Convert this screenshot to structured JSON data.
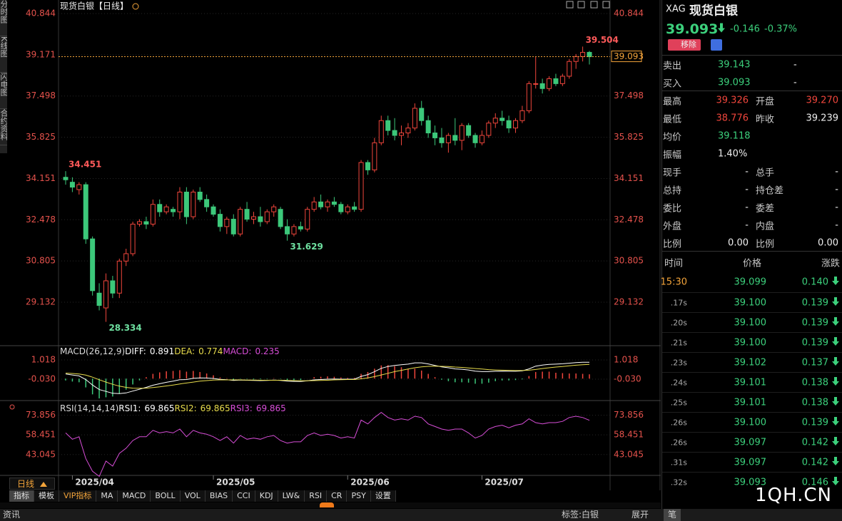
{
  "side_tabs": [
    "分时图",
    "K线图",
    "闪电图",
    "合约资料"
  ],
  "chart_data": [
    {
      "type": "candlestick",
      "title": "现货白银【日线】",
      "up_color": "#f0463c",
      "down_color": "#3cc87a",
      "grid": true,
      "ylim": [
        27.368,
        41.249
      ],
      "yticks": [
        40.844,
        39.171,
        37.498,
        35.825,
        34.151,
        32.478,
        30.805,
        29.132
      ],
      "categories": [
        null,
        "2025/04",
        null,
        null,
        null,
        null,
        null,
        null,
        null,
        null,
        null,
        null,
        null,
        null,
        null,
        null,
        null,
        null,
        null,
        null,
        null,
        null,
        "2025/05",
        null,
        null,
        null,
        null,
        null,
        null,
        null,
        null,
        null,
        null,
        null,
        null,
        null,
        null,
        null,
        null,
        null,
        null,
        null,
        "2025/06",
        null,
        null,
        null,
        null,
        null,
        null,
        null,
        null,
        null,
        null,
        null,
        null,
        null,
        null,
        null,
        null,
        null,
        null,
        null,
        "2025/07",
        null,
        null,
        null,
        null,
        null,
        null,
        null,
        null,
        null,
        null,
        null,
        null,
        null,
        null,
        null
      ],
      "candles": [
        [
          34.2,
          34.451,
          33.9,
          34.1
        ],
        [
          34.0,
          34.2,
          33.6,
          33.8
        ],
        [
          33.7,
          34.0,
          33.5,
          33.9
        ],
        [
          33.9,
          34.0,
          31.5,
          31.7
        ],
        [
          31.7,
          31.8,
          29.4,
          29.6
        ],
        [
          29.5,
          29.9,
          28.8,
          29.0
        ],
        [
          28.9,
          30.3,
          28.334,
          30.0
        ],
        [
          30.0,
          30.2,
          29.3,
          29.5
        ],
        [
          29.5,
          30.9,
          29.3,
          30.8
        ],
        [
          30.8,
          31.3,
          30.6,
          31.1
        ],
        [
          31.1,
          32.4,
          31.0,
          32.3
        ],
        [
          32.3,
          32.5,
          32.2,
          32.4
        ],
        [
          32.4,
          32.6,
          32.1,
          32.3
        ],
        [
          32.3,
          33.3,
          32.2,
          33.1
        ],
        [
          33.1,
          33.3,
          32.6,
          32.8
        ],
        [
          32.8,
          33.1,
          32.7,
          33.0
        ],
        [
          32.9,
          33.0,
          32.6,
          32.8
        ],
        [
          32.8,
          33.8,
          32.5,
          33.6
        ],
        [
          33.6,
          33.8,
          32.3,
          32.6
        ],
        [
          32.6,
          33.7,
          32.5,
          33.6
        ],
        [
          33.6,
          33.8,
          33.2,
          33.3
        ],
        [
          33.3,
          33.5,
          32.8,
          33.0
        ],
        [
          33.0,
          33.1,
          32.6,
          32.7
        ],
        [
          32.7,
          32.9,
          32.0,
          32.2
        ],
        [
          32.2,
          32.6,
          31.9,
          32.5
        ],
        [
          32.5,
          32.7,
          31.8,
          31.9
        ],
        [
          31.9,
          33.0,
          31.8,
          32.9
        ],
        [
          32.9,
          33.2,
          32.4,
          32.5
        ],
        [
          32.5,
          32.8,
          32.3,
          32.6
        ],
        [
          32.6,
          33.0,
          32.2,
          32.4
        ],
        [
          32.4,
          32.9,
          32.3,
          32.8
        ],
        [
          32.8,
          33.1,
          32.6,
          33.0
        ],
        [
          32.9,
          33.0,
          32.1,
          32.2
        ],
        [
          32.2,
          32.5,
          31.629,
          31.9
        ],
        [
          31.9,
          32.3,
          31.8,
          32.2
        ],
        [
          32.2,
          32.4,
          32.0,
          32.1
        ],
        [
          32.1,
          33.0,
          32.0,
          32.9
        ],
        [
          32.9,
          33.4,
          32.8,
          33.2
        ],
        [
          33.2,
          33.5,
          32.9,
          33.0
        ],
        [
          33.0,
          33.3,
          32.8,
          33.2
        ],
        [
          33.2,
          33.4,
          33.0,
          33.1
        ],
        [
          33.1,
          33.2,
          32.7,
          32.8
        ],
        [
          32.8,
          33.1,
          32.7,
          33.0
        ],
        [
          33.0,
          33.2,
          32.8,
          32.9
        ],
        [
          32.9,
          34.9,
          32.8,
          34.8
        ],
        [
          34.8,
          34.9,
          34.3,
          34.5
        ],
        [
          34.5,
          35.8,
          34.4,
          35.6
        ],
        [
          35.6,
          36.7,
          35.5,
          36.5
        ],
        [
          36.5,
          36.7,
          35.9,
          36.1
        ],
        [
          36.1,
          36.6,
          35.7,
          35.9
        ],
        [
          35.9,
          36.3,
          35.5,
          36.0
        ],
        [
          36.0,
          36.4,
          35.8,
          36.2
        ],
        [
          36.2,
          37.2,
          36.1,
          37.0
        ],
        [
          37.0,
          37.3,
          36.3,
          36.5
        ],
        [
          36.5,
          36.7,
          35.8,
          36.0
        ],
        [
          36.0,
          36.3,
          35.5,
          35.8
        ],
        [
          35.8,
          36.2,
          35.4,
          35.6
        ],
        [
          35.6,
          36.0,
          35.2,
          35.9
        ],
        [
          35.9,
          36.6,
          35.5,
          35.7
        ],
        [
          35.7,
          36.4,
          35.3,
          36.3
        ],
        [
          36.3,
          36.4,
          35.8,
          35.9
        ],
        [
          35.9,
          36.0,
          35.4,
          35.6
        ],
        [
          35.6,
          36.1,
          35.5,
          35.9
        ],
        [
          35.9,
          36.5,
          35.8,
          36.4
        ],
        [
          36.4,
          36.8,
          36.2,
          36.6
        ],
        [
          36.6,
          36.9,
          36.3,
          36.5
        ],
        [
          36.5,
          36.7,
          36.0,
          36.2
        ],
        [
          36.2,
          36.6,
          36.0,
          36.5
        ],
        [
          36.5,
          37.1,
          36.4,
          36.9
        ],
        [
          36.9,
          38.1,
          36.8,
          38.0
        ],
        [
          38.0,
          39.1,
          37.8,
          38.0
        ],
        [
          38.0,
          38.2,
          37.6,
          37.8
        ],
        [
          37.8,
          38.3,
          37.7,
          38.2
        ],
        [
          38.2,
          38.4,
          37.9,
          38.0
        ],
        [
          38.0,
          38.4,
          37.9,
          38.3
        ],
        [
          38.3,
          39.0,
          38.2,
          38.9
        ],
        [
          38.9,
          39.2,
          38.6,
          39.1
        ],
        [
          39.1,
          39.504,
          38.9,
          39.27
        ],
        [
          39.27,
          39.326,
          38.776,
          39.093
        ]
      ]
    },
    {
      "type": "macd",
      "title": "MACD(26,12,9)",
      "up_color": "#f0463c",
      "down_color": "#3cc87a",
      "ylim": [
        -1.12,
        1.72
      ],
      "yticks": [
        1.018,
        {
          "value": -0.03,
          "label": "-0.030"
        }
      ],
      "series": [
        {
          "name": "DIFF:",
          "color": "#ffffff",
          "values": [
            0.25,
            0.2,
            0.15,
            -0.05,
            -0.35,
            -0.6,
            -0.7,
            -0.8,
            -0.82,
            -0.78,
            -0.68,
            -0.58,
            -0.48,
            -0.36,
            -0.28,
            -0.2,
            -0.14,
            -0.06,
            -0.05,
            0.02,
            0.04,
            0.03,
            0.01,
            -0.04,
            -0.06,
            -0.1,
            -0.08,
            -0.09,
            -0.1,
            -0.11,
            -0.1,
            -0.08,
            -0.1,
            -0.14,
            -0.15,
            -0.16,
            -0.12,
            -0.07,
            -0.05,
            -0.03,
            -0.02,
            -0.03,
            -0.03,
            -0.03,
            0.12,
            0.22,
            0.38,
            0.56,
            0.66,
            0.72,
            0.76,
            0.79,
            0.86,
            0.86,
            0.8,
            0.72,
            0.64,
            0.59,
            0.53,
            0.51,
            0.47,
            0.41,
            0.38,
            0.38,
            0.4,
            0.41,
            0.4,
            0.4,
            0.42,
            0.53,
            0.68,
            0.74,
            0.78,
            0.79,
            0.81,
            0.84,
            0.87,
            0.89,
            0.891
          ]
        },
        {
          "name": "DEA:",
          "color": "#e8dc4c",
          "values": [
            0.3,
            0.28,
            0.25,
            0.19,
            0.08,
            -0.06,
            -0.19,
            -0.31,
            -0.41,
            -0.48,
            -0.52,
            -0.53,
            -0.52,
            -0.49,
            -0.45,
            -0.4,
            -0.35,
            -0.29,
            -0.24,
            -0.19,
            -0.14,
            -0.11,
            -0.08,
            -0.07,
            -0.07,
            -0.07,
            -0.07,
            -0.08,
            -0.08,
            -0.09,
            -0.09,
            -0.09,
            -0.09,
            -0.1,
            -0.11,
            -0.12,
            -0.12,
            -0.11,
            -0.1,
            -0.09,
            -0.07,
            -0.06,
            -0.05,
            -0.05,
            -0.01,
            0.04,
            0.11,
            0.2,
            0.29,
            0.38,
            0.45,
            0.52,
            0.59,
            0.64,
            0.67,
            0.68,
            0.67,
            0.66,
            0.63,
            0.61,
            0.58,
            0.55,
            0.52,
            0.49,
            0.47,
            0.46,
            0.45,
            0.44,
            0.44,
            0.46,
            0.5,
            0.55,
            0.59,
            0.63,
            0.66,
            0.7,
            0.73,
            0.76,
            0.774
          ]
        },
        {
          "name": "MACD:",
          "color": "#d84ed8",
          "style": "bar",
          "values": [
            -0.1,
            -0.16,
            -0.2,
            -0.48,
            -0.86,
            -1.08,
            -1.02,
            -0.98,
            -0.82,
            -0.6,
            -0.32,
            -0.1,
            0.08,
            0.26,
            0.34,
            0.4,
            0.42,
            0.46,
            0.38,
            0.42,
            0.36,
            0.28,
            0.18,
            0.06,
            0.02,
            -0.06,
            -0.02,
            -0.02,
            -0.04,
            -0.04,
            -0.02,
            0.02,
            -0.02,
            -0.08,
            -0.08,
            -0.08,
            0.0,
            0.08,
            0.1,
            0.12,
            0.1,
            0.06,
            0.04,
            0.04,
            0.26,
            0.36,
            0.54,
            0.72,
            0.74,
            0.68,
            0.62,
            0.54,
            0.54,
            0.44,
            0.26,
            0.08,
            -0.06,
            -0.14,
            -0.2,
            -0.2,
            -0.22,
            -0.28,
            -0.28,
            -0.22,
            -0.14,
            -0.1,
            -0.1,
            -0.08,
            -0.04,
            0.14,
            0.36,
            0.38,
            0.38,
            0.32,
            0.3,
            0.28,
            0.28,
            0.26,
            0.235
          ]
        }
      ]
    },
    {
      "type": "line",
      "title": "RSI(14,14,14)",
      "ylim": [
        27.9,
        83.6
      ],
      "yticks": [
        73.856,
        58.451,
        43.045
      ],
      "legend": [
        {
          "name": "RSI1:",
          "value": 69.865,
          "color": "#ffffff"
        },
        {
          "name": "RSI2:",
          "value": 69.865,
          "color": "#e8dc4c"
        }
      ],
      "series": [
        {
          "name": "RSI3:",
          "color": "#d84ed8",
          "values": [
            60,
            55,
            57,
            40,
            30,
            26,
            38,
            34,
            44,
            48,
            54,
            57,
            57,
            62,
            60,
            61,
            60,
            63,
            57,
            62,
            60,
            59,
            57,
            54,
            57,
            52,
            58,
            55,
            56,
            55,
            57,
            58,
            54,
            52,
            53,
            53,
            58,
            60,
            58,
            59,
            58,
            56,
            57,
            56,
            70,
            67,
            72,
            76,
            72,
            70,
            71,
            70,
            73,
            72,
            67,
            65,
            63,
            62,
            63,
            63,
            60,
            56,
            58,
            63,
            65,
            66,
            64,
            66,
            67,
            71,
            68,
            67,
            68,
            68,
            69,
            72,
            73,
            72,
            69.865
          ]
        }
      ]
    }
  ],
  "quote": {
    "symbol": "XAG",
    "name": "现货白银",
    "price": "39.093",
    "change": "-0.146",
    "change_pct": "-0.37%",
    "remove_button": "移除",
    "bid_ask": [
      [
        "卖出",
        "39.143",
        "-"
      ],
      [
        "买入",
        "39.093",
        "-"
      ]
    ],
    "stats": [
      [
        "最高",
        "39.326",
        "开盘",
        "39.270"
      ],
      [
        "最低",
        "38.776",
        "昨收",
        "39.239"
      ],
      [
        "均价",
        "39.118"
      ],
      [
        "振幅",
        "1.40%"
      ],
      [
        "现手",
        "-",
        "总手",
        "-"
      ],
      [
        "总持",
        "-",
        "持仓差",
        "-"
      ],
      [
        "委比",
        "-",
        "委差",
        "-"
      ],
      [
        "外盘",
        "-",
        "内盘",
        "-"
      ],
      [
        "比例",
        "0.00",
        "比例",
        "0.00"
      ]
    ],
    "ticks_header": [
      "时间",
      "价格",
      "涨跌"
    ],
    "ticks": [
      [
        "15:30",
        "39.099",
        "0.140"
      ],
      [
        ".17s",
        "39.100",
        "0.139"
      ],
      [
        ".20s",
        "39.100",
        "0.139"
      ],
      [
        ".21s",
        "39.100",
        "0.139"
      ],
      [
        ".23s",
        "39.102",
        "0.137"
      ],
      [
        ".24s",
        "39.101",
        "0.138"
      ],
      [
        ".25s",
        "39.101",
        "0.138"
      ],
      [
        ".26s",
        "39.100",
        "0.139"
      ],
      [
        ".26s",
        "39.097",
        "0.142"
      ],
      [
        ".31s",
        "39.097",
        "0.142"
      ],
      [
        ".32s",
        "39.093",
        "0.146"
      ]
    ]
  },
  "toolbar": {
    "period": "日线",
    "tabs": [
      "指标",
      "模板",
      "VIP指标",
      "MA",
      "MACD",
      "BOLL",
      "VOL",
      "BIAS",
      "CCI",
      "KDJ",
      "LW&",
      "RSI",
      "CR",
      "PSY",
      "设置"
    ]
  },
  "status": {
    "left": "资讯",
    "tag": "标签:白银",
    "expand": "展开",
    "pen": "笔"
  },
  "watermark": "1QH.CN"
}
